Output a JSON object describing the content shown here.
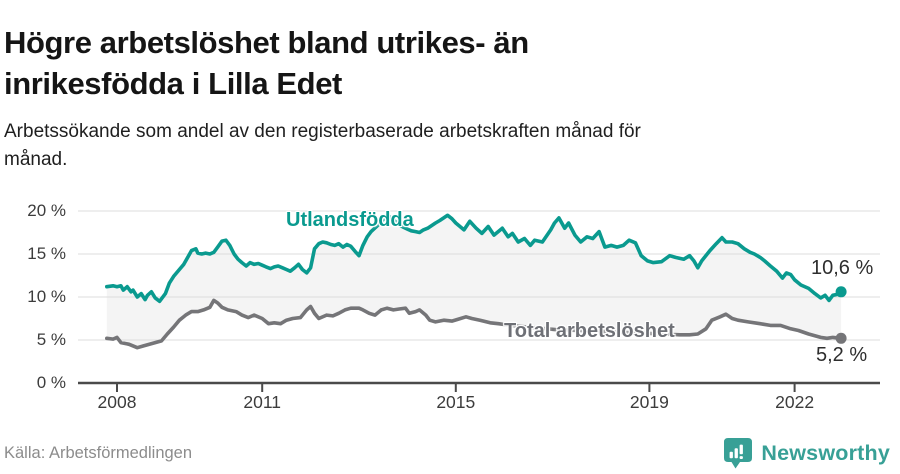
{
  "chart_data": {
    "type": "line",
    "title": "Högre arbetslöshet bland utrikes- än inrikesfödda i Lilla Edet",
    "subtitle": "Arbetssökande som andel av den registerbaserade arbetskraften månad för månad.",
    "unit": "%",
    "grid": true,
    "legend_position": "inline-labels",
    "ylim": [
      0,
      20
    ],
    "x_range": [
      2007.8,
      2023.0
    ],
    "band_fill": "#f4f4f4",
    "y_axis": {
      "ticks": [
        0,
        5,
        10,
        15,
        20
      ],
      "tick_labels": [
        "0 %",
        "5 %",
        "10 %",
        "15 %",
        "20 %"
      ]
    },
    "x_axis": {
      "ticks": [
        2008,
        2011,
        2015,
        2019,
        2022
      ],
      "tick_labels": [
        "2008",
        "2011",
        "2015",
        "2019",
        "2022"
      ]
    },
    "series": [
      {
        "name": "Utlandsfödda",
        "color": "#0a9a8f",
        "end_label": "10,6 %",
        "end_value": 10.6,
        "points": [
          [
            2007.79,
            11.2
          ],
          [
            2007.92,
            11.3
          ],
          [
            2008.0,
            11.2
          ],
          [
            2008.08,
            11.3
          ],
          [
            2008.13,
            10.8
          ],
          [
            2008.21,
            11.2
          ],
          [
            2008.29,
            10.6
          ],
          [
            2008.33,
            10.8
          ],
          [
            2008.42,
            10.0
          ],
          [
            2008.5,
            10.4
          ],
          [
            2008.58,
            9.7
          ],
          [
            2008.63,
            10.2
          ],
          [
            2008.71,
            10.6
          ],
          [
            2008.79,
            9.9
          ],
          [
            2008.88,
            9.5
          ],
          [
            2009.0,
            10.4
          ],
          [
            2009.08,
            11.6
          ],
          [
            2009.17,
            12.4
          ],
          [
            2009.29,
            13.2
          ],
          [
            2009.38,
            13.8
          ],
          [
            2009.46,
            14.6
          ],
          [
            2009.54,
            15.4
          ],
          [
            2009.63,
            15.6
          ],
          [
            2009.67,
            15.1
          ],
          [
            2009.75,
            15.0
          ],
          [
            2009.83,
            15.1
          ],
          [
            2009.92,
            15.0
          ],
          [
            2010.0,
            15.2
          ],
          [
            2010.08,
            15.8
          ],
          [
            2010.17,
            16.5
          ],
          [
            2010.25,
            16.6
          ],
          [
            2010.33,
            16.0
          ],
          [
            2010.42,
            15.0
          ],
          [
            2010.5,
            14.4
          ],
          [
            2010.58,
            14.0
          ],
          [
            2010.67,
            13.6
          ],
          [
            2010.75,
            14.0
          ],
          [
            2010.83,
            13.8
          ],
          [
            2010.92,
            13.9
          ],
          [
            2011.0,
            13.7
          ],
          [
            2011.08,
            13.5
          ],
          [
            2011.17,
            13.3
          ],
          [
            2011.25,
            13.5
          ],
          [
            2011.33,
            13.6
          ],
          [
            2011.42,
            13.4
          ],
          [
            2011.5,
            13.2
          ],
          [
            2011.58,
            13.0
          ],
          [
            2011.67,
            13.4
          ],
          [
            2011.75,
            13.8
          ],
          [
            2011.83,
            13.2
          ],
          [
            2011.92,
            12.8
          ],
          [
            2012.0,
            13.4
          ],
          [
            2012.08,
            15.6
          ],
          [
            2012.17,
            16.2
          ],
          [
            2012.25,
            16.4
          ],
          [
            2012.33,
            16.3
          ],
          [
            2012.42,
            16.1
          ],
          [
            2012.5,
            16.0
          ],
          [
            2012.58,
            16.2
          ],
          [
            2012.67,
            15.8
          ],
          [
            2012.75,
            16.1
          ],
          [
            2012.83,
            15.9
          ],
          [
            2012.92,
            15.3
          ],
          [
            2013.0,
            14.8
          ],
          [
            2013.08,
            16.0
          ],
          [
            2013.17,
            17.0
          ],
          [
            2013.25,
            17.6
          ],
          [
            2013.42,
            18.5
          ],
          [
            2013.58,
            19.5
          ],
          [
            2013.67,
            19.2
          ],
          [
            2013.75,
            18.8
          ],
          [
            2013.83,
            18.4
          ],
          [
            2013.92,
            18.1
          ],
          [
            2014.0,
            17.9
          ],
          [
            2014.08,
            17.7
          ],
          [
            2014.17,
            17.6
          ],
          [
            2014.25,
            17.5
          ],
          [
            2014.33,
            17.8
          ],
          [
            2014.42,
            18.0
          ],
          [
            2014.5,
            18.3
          ],
          [
            2014.58,
            18.6
          ],
          [
            2014.67,
            18.9
          ],
          [
            2014.75,
            19.2
          ],
          [
            2014.83,
            19.5
          ],
          [
            2014.92,
            19.1
          ],
          [
            2015.0,
            18.6
          ],
          [
            2015.17,
            17.8
          ],
          [
            2015.29,
            18.8
          ],
          [
            2015.42,
            18.0
          ],
          [
            2015.54,
            17.4
          ],
          [
            2015.67,
            18.2
          ],
          [
            2015.79,
            17.2
          ],
          [
            2015.96,
            18.0
          ],
          [
            2016.08,
            17.0
          ],
          [
            2016.17,
            17.4
          ],
          [
            2016.29,
            16.4
          ],
          [
            2016.42,
            16.8
          ],
          [
            2016.54,
            16.0
          ],
          [
            2016.63,
            16.6
          ],
          [
            2016.79,
            16.4
          ],
          [
            2016.96,
            17.8
          ],
          [
            2017.04,
            18.6
          ],
          [
            2017.13,
            19.2
          ],
          [
            2017.25,
            18.0
          ],
          [
            2017.33,
            18.6
          ],
          [
            2017.46,
            17.2
          ],
          [
            2017.58,
            16.4
          ],
          [
            2017.71,
            17.0
          ],
          [
            2017.83,
            16.8
          ],
          [
            2017.96,
            17.6
          ],
          [
            2018.08,
            15.8
          ],
          [
            2018.21,
            16.0
          ],
          [
            2018.33,
            15.8
          ],
          [
            2018.46,
            16.0
          ],
          [
            2018.58,
            16.6
          ],
          [
            2018.71,
            16.3
          ],
          [
            2018.83,
            14.8
          ],
          [
            2018.96,
            14.2
          ],
          [
            2019.08,
            14.0
          ],
          [
            2019.25,
            14.1
          ],
          [
            2019.42,
            14.8
          ],
          [
            2019.54,
            14.6
          ],
          [
            2019.71,
            14.4
          ],
          [
            2019.83,
            14.8
          ],
          [
            2019.92,
            14.2
          ],
          [
            2020.0,
            13.4
          ],
          [
            2020.08,
            14.2
          ],
          [
            2020.25,
            15.4
          ],
          [
            2020.38,
            16.2
          ],
          [
            2020.5,
            16.9
          ],
          [
            2020.58,
            16.4
          ],
          [
            2020.71,
            16.4
          ],
          [
            2020.83,
            16.2
          ],
          [
            2020.96,
            15.6
          ],
          [
            2021.08,
            15.2
          ],
          [
            2021.17,
            15.0
          ],
          [
            2021.29,
            14.6
          ],
          [
            2021.38,
            14.2
          ],
          [
            2021.5,
            13.6
          ],
          [
            2021.63,
            13.0
          ],
          [
            2021.75,
            12.2
          ],
          [
            2021.83,
            12.8
          ],
          [
            2021.92,
            12.6
          ],
          [
            2022.0,
            12.0
          ],
          [
            2022.13,
            11.4
          ],
          [
            2022.29,
            11.0
          ],
          [
            2022.42,
            10.4
          ],
          [
            2022.54,
            9.9
          ],
          [
            2022.63,
            10.2
          ],
          [
            2022.71,
            9.6
          ],
          [
            2022.79,
            10.2
          ],
          [
            2022.88,
            10.3
          ],
          [
            2022.96,
            10.6
          ]
        ]
      },
      {
        "name": "Total arbetslöshet",
        "color": "#757578",
        "end_label": "5,2 %",
        "end_value": 5.2,
        "points": [
          [
            2007.79,
            5.2
          ],
          [
            2007.92,
            5.1
          ],
          [
            2008.0,
            5.3
          ],
          [
            2008.08,
            4.7
          ],
          [
            2008.25,
            4.5
          ],
          [
            2008.42,
            4.1
          ],
          [
            2008.54,
            4.3
          ],
          [
            2008.67,
            4.5
          ],
          [
            2008.79,
            4.7
          ],
          [
            2008.92,
            4.9
          ],
          [
            2009.04,
            5.7
          ],
          [
            2009.17,
            6.5
          ],
          [
            2009.29,
            7.3
          ],
          [
            2009.42,
            7.9
          ],
          [
            2009.54,
            8.3
          ],
          [
            2009.67,
            8.3
          ],
          [
            2009.79,
            8.5
          ],
          [
            2009.92,
            8.8
          ],
          [
            2010.0,
            9.6
          ],
          [
            2010.08,
            9.3
          ],
          [
            2010.17,
            8.8
          ],
          [
            2010.29,
            8.5
          ],
          [
            2010.46,
            8.3
          ],
          [
            2010.58,
            7.9
          ],
          [
            2010.71,
            7.6
          ],
          [
            2010.83,
            7.9
          ],
          [
            2011.0,
            7.5
          ],
          [
            2011.13,
            6.9
          ],
          [
            2011.25,
            7.0
          ],
          [
            2011.38,
            6.9
          ],
          [
            2011.5,
            7.3
          ],
          [
            2011.63,
            7.5
          ],
          [
            2011.79,
            7.6
          ],
          [
            2011.92,
            8.5
          ],
          [
            2012.0,
            8.9
          ],
          [
            2012.08,
            8.1
          ],
          [
            2012.17,
            7.5
          ],
          [
            2012.33,
            7.9
          ],
          [
            2012.46,
            7.8
          ],
          [
            2012.58,
            8.1
          ],
          [
            2012.71,
            8.5
          ],
          [
            2012.83,
            8.7
          ],
          [
            2013.0,
            8.7
          ],
          [
            2013.08,
            8.5
          ],
          [
            2013.21,
            8.1
          ],
          [
            2013.33,
            7.9
          ],
          [
            2013.46,
            8.5
          ],
          [
            2013.58,
            8.7
          ],
          [
            2013.71,
            8.5
          ],
          [
            2013.83,
            8.6
          ],
          [
            2013.96,
            8.7
          ],
          [
            2014.04,
            8.1
          ],
          [
            2014.17,
            8.3
          ],
          [
            2014.25,
            8.5
          ],
          [
            2014.38,
            7.9
          ],
          [
            2014.46,
            7.3
          ],
          [
            2014.58,
            7.1
          ],
          [
            2014.75,
            7.3
          ],
          [
            2014.92,
            7.2
          ],
          [
            2015.04,
            7.4
          ],
          [
            2015.21,
            7.7
          ],
          [
            2015.33,
            7.5
          ],
          [
            2015.5,
            7.3
          ],
          [
            2015.71,
            7.0
          ],
          [
            2015.88,
            6.9
          ],
          [
            2016.0,
            6.8
          ],
          [
            2016.29,
            6.6
          ],
          [
            2016.71,
            6.4
          ],
          [
            2017.08,
            6.2
          ],
          [
            2017.54,
            6.1
          ],
          [
            2018.0,
            6.0
          ],
          [
            2018.42,
            5.9
          ],
          [
            2018.83,
            5.8
          ],
          [
            2019.25,
            5.7
          ],
          [
            2019.63,
            5.6
          ],
          [
            2019.83,
            5.6
          ],
          [
            2020.0,
            5.7
          ],
          [
            2020.17,
            6.3
          ],
          [
            2020.29,
            7.3
          ],
          [
            2020.46,
            7.7
          ],
          [
            2020.58,
            8.0
          ],
          [
            2020.71,
            7.5
          ],
          [
            2020.83,
            7.3
          ],
          [
            2021.04,
            7.1
          ],
          [
            2021.29,
            6.9
          ],
          [
            2021.5,
            6.7
          ],
          [
            2021.71,
            6.7
          ],
          [
            2021.92,
            6.3
          ],
          [
            2022.08,
            6.1
          ],
          [
            2022.29,
            5.7
          ],
          [
            2022.54,
            5.3
          ],
          [
            2022.67,
            5.2
          ],
          [
            2022.79,
            5.3
          ],
          [
            2022.96,
            5.2
          ]
        ]
      }
    ]
  },
  "footer": {
    "source": "Källa: Arbetsförmedlingen",
    "brand": "Newsworthy"
  },
  "colors": {
    "accent_teal": "#0a9a8f",
    "series_gray": "#757578",
    "brand_teal": "#38a096",
    "axis": "#4a4a4a",
    "gridline": "#dcdcdc"
  }
}
